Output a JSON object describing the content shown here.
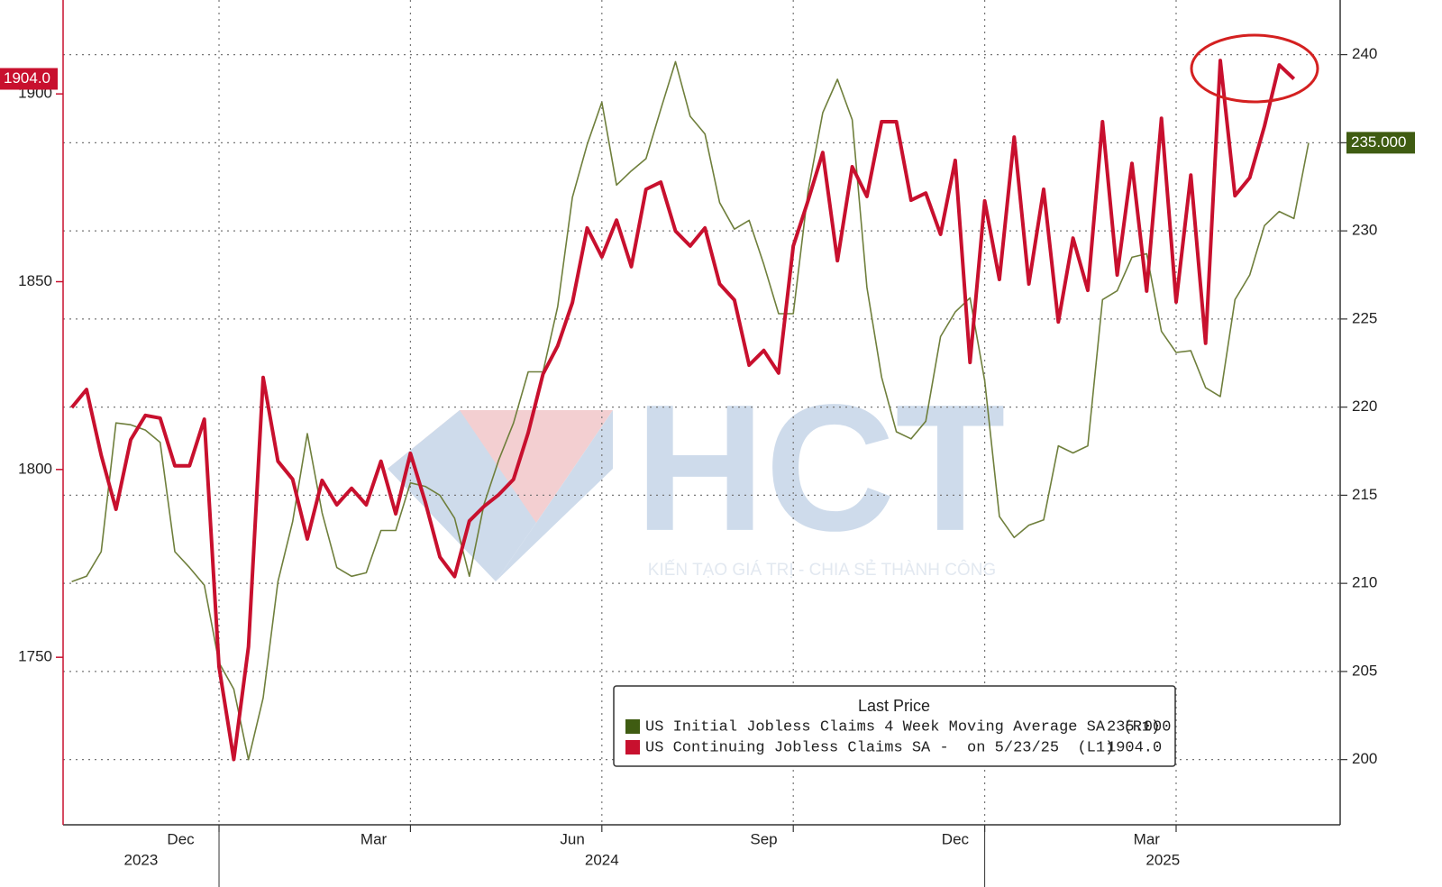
{
  "chart_data": {
    "type": "line",
    "categories": [
      null,
      null,
      null,
      null,
      null,
      null,
      null,
      null,
      null,
      null,
      null,
      null,
      null,
      null,
      null,
      null,
      null,
      null,
      null,
      null,
      null,
      null,
      null,
      null,
      null,
      null,
      null,
      null,
      null,
      null,
      null,
      null,
      null,
      null,
      null,
      null,
      null,
      null,
      null,
      null,
      null,
      null,
      null,
      null,
      null,
      null,
      null,
      null,
      null,
      null,
      null,
      null,
      null,
      null,
      null,
      null,
      null,
      null,
      null,
      null,
      null,
      null,
      null,
      null,
      null,
      null,
      null,
      null,
      null,
      null,
      null,
      null,
      null,
      null,
      null,
      null,
      null,
      null,
      null,
      null,
      null,
      null,
      null,
      null,
      null
    ],
    "xlim": [
      -0.59,
      86.14
    ],
    "xticks": [
      {
        "value": 7.4,
        "label": "Dec"
      },
      {
        "value": 20.5,
        "label": "Mar"
      },
      {
        "value": 34.0,
        "label": "Jun"
      },
      {
        "value": 47.0,
        "label": "Sep"
      },
      {
        "value": 60.0,
        "label": "Dec"
      },
      {
        "value": 73.0,
        "label": "Mar"
      }
    ],
    "year_labels": [
      {
        "value": 4.7,
        "label": "2023"
      },
      {
        "value": 36.0,
        "label": "2024"
      },
      {
        "value": 74.1,
        "label": "2025"
      }
    ],
    "xgrid": [
      10,
      23,
      36,
      49,
      62,
      75
    ],
    "year_breaks": [
      10,
      62
    ],
    "ylim": [
      1705.4,
      1925
    ],
    "yticks": [
      1750,
      1800,
      1850,
      1900
    ],
    "y2lim": [
      196.3,
      243.1
    ],
    "y2ticks": [
      200,
      205,
      210,
      215,
      220,
      225,
      230,
      235,
      240
    ],
    "grid": true,
    "legend_title": "Last Price",
    "series": [
      {
        "name": "US Initial Jobless Claims 4 Week Moving Average SA  (R1)",
        "axis": "y2",
        "color": "#6f7f3c",
        "badge_color": "#3f5c12",
        "last_label": "235.000",
        "values": [
          210.1,
          210.4,
          211.8,
          219.1,
          219.0,
          218.7,
          218.0,
          211.8,
          210.9,
          209.9,
          205.5,
          204.0,
          200.0,
          203.5,
          210.1,
          213.5,
          218.5,
          214.0,
          210.9,
          210.4,
          210.6,
          213.0,
          213.0,
          215.7,
          215.5,
          215.0,
          213.7,
          210.4,
          214.5,
          217.0,
          219.1,
          222.0,
          222.0,
          225.7,
          231.9,
          234.9,
          237.3,
          232.6,
          233.4,
          234.1,
          236.9,
          239.6,
          236.5,
          235.5,
          231.6,
          230.1,
          230.6,
          228.1,
          225.3,
          225.3,
          232.2,
          236.7,
          238.6,
          236.3,
          226.8,
          221.7,
          218.6,
          218.2,
          219.2,
          224.0,
          225.4,
          226.2,
          221.5,
          213.8,
          212.6,
          213.3,
          213.6,
          217.8,
          217.4,
          217.8,
          226.1,
          226.6,
          228.5,
          228.7,
          224.3,
          223.1,
          223.2,
          221.1,
          220.6,
          226.1,
          227.5,
          230.3,
          231.1,
          230.7,
          235.0
        ]
      },
      {
        "name": "US Continuing Jobless Claims SA -  on 5/23/25  (L1)",
        "axis": "y",
        "color": "#c8102e",
        "badge_color": "#c8102e",
        "last_label": "1904.0",
        "values": [
          1816.5,
          1821.3,
          1803.8,
          1789.4,
          1807.9,
          1814.4,
          1813.7,
          1801,
          1801,
          1813.4,
          1747.5,
          1722.8,
          1752.8,
          1824.5,
          1802.2,
          1797.4,
          1781.5,
          1797.1,
          1790.6,
          1795,
          1790.6,
          1802.2,
          1788.2,
          1804.3,
          1791.4,
          1776.7,
          1771.5,
          1786.3,
          1790.2,
          1793.3,
          1797.4,
          1809.8,
          1825.4,
          1832.9,
          1844.4,
          1864.3,
          1856.6,
          1866.4,
          1854,
          1874.6,
          1876.5,
          1863.5,
          1859.5,
          1864.3,
          1849.4,
          1845.1,
          1827.8,
          1831.7,
          1825.7,
          1859.5,
          1871.5,
          1884.4,
          1855.6,
          1880.6,
          1872.7,
          1892.6,
          1892.6,
          1871.7,
          1873.6,
          1862.6,
          1882.3,
          1828.5,
          1871.5,
          1850.6,
          1888.5,
          1849.4,
          1874.6,
          1839.3,
          1861.6,
          1847.7,
          1892.6,
          1851.8,
          1881.5,
          1847.5,
          1893.5,
          1844.6,
          1878.4,
          1833.6,
          1908.9,
          1872.9,
          1877.7,
          1891.4,
          1907.7,
          1904,
          null
        ]
      }
    ]
  },
  "watermark": {
    "text": "HCT",
    "tagline": "KIẾN TẠO GIÁ TRỊ - CHIA SẺ THÀNH CÔNG"
  }
}
